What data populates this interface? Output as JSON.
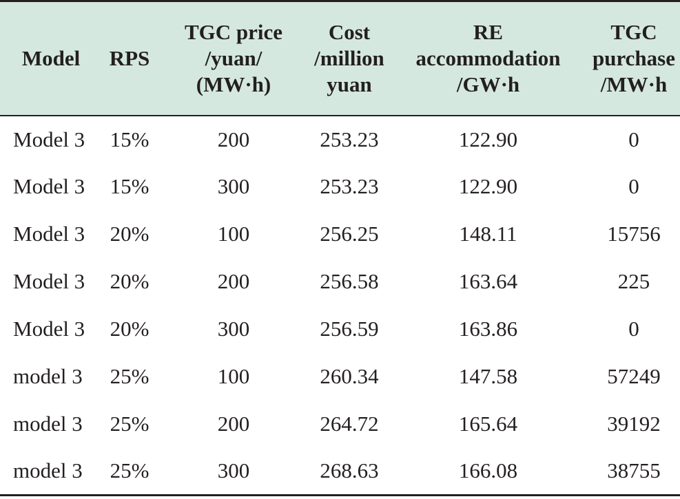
{
  "table": {
    "headers": [
      [
        "Model"
      ],
      [
        "RPS"
      ],
      [
        "TGC price",
        "/yuan/",
        "(MW·h)"
      ],
      [
        "Cost",
        "/million",
        "yuan"
      ],
      [
        "RE",
        "accommodation",
        "/GW·h"
      ],
      [
        "TGC",
        "purchase",
        "/MW·h"
      ]
    ],
    "rows": [
      [
        "Model 3",
        "15%",
        "200",
        "253.23",
        "122.90",
        "0"
      ],
      [
        "Model 3",
        "15%",
        "300",
        "253.23",
        "122.90",
        "0"
      ],
      [
        "Model 3",
        "20%",
        "100",
        "256.25",
        "148.11",
        "15756"
      ],
      [
        "Model 3",
        "20%",
        "200",
        "256.58",
        "163.64",
        "225"
      ],
      [
        "Model 3",
        "20%",
        "300",
        "256.59",
        "163.86",
        "0"
      ],
      [
        "model 3",
        "25%",
        "100",
        "260.34",
        "147.58",
        "57249"
      ],
      [
        "model 3",
        "25%",
        "200",
        "264.72",
        "165.64",
        "39192"
      ],
      [
        "model 3",
        "25%",
        "300",
        "268.63",
        "166.08",
        "38755"
      ]
    ]
  }
}
